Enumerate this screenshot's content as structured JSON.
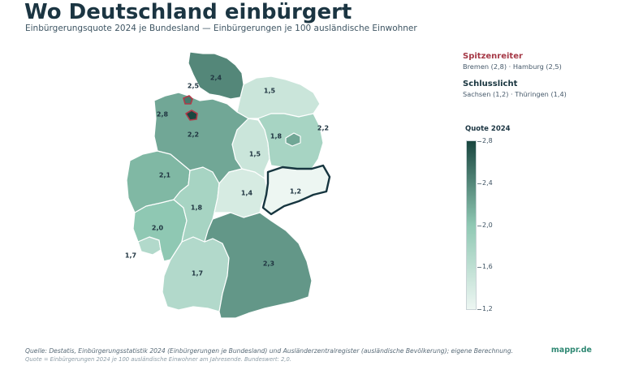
{
  "title": "Wo Deutschland einbürgert",
  "subtitle": "Einbürgerungsquote 2024 je Bundesland — Einbürgerungen je 100 ausländische Einwohner",
  "map": {
    "regions": [
      {
        "key": "sh",
        "name": "Schleswig-Holstein",
        "value": 2.4,
        "label": "2,4"
      },
      {
        "key": "mv",
        "name": "Mecklenburg-Vorpommern",
        "value": 1.5,
        "label": "1,5"
      },
      {
        "key": "hh",
        "name": "Hamburg",
        "value": 2.5,
        "label": "2,5"
      },
      {
        "key": "hb",
        "name": "Bremen",
        "value": 2.8,
        "label": "2,8"
      },
      {
        "key": "ni",
        "name": "Niedersachsen",
        "value": 2.2,
        "label": "2,2"
      },
      {
        "key": "st",
        "name": "Sachsen-Anhalt",
        "value": 1.5,
        "label": "1,5"
      },
      {
        "key": "bb",
        "name": "Brandenburg",
        "value": 1.8,
        "label": "1,8"
      },
      {
        "key": "be",
        "name": "Berlin",
        "value": 2.2,
        "label": "2,2"
      },
      {
        "key": "nw",
        "name": "Nordrhein-Westfalen",
        "value": 2.1,
        "label": "2,1"
      },
      {
        "key": "he",
        "name": "Hessen",
        "value": 1.8,
        "label": "1,8"
      },
      {
        "key": "th",
        "name": "Thüringen",
        "value": 1.4,
        "label": "1,4"
      },
      {
        "key": "sn",
        "name": "Sachsen",
        "value": 1.2,
        "label": "1,2"
      },
      {
        "key": "rp",
        "name": "Rheinland-Pfalz",
        "value": 2.0,
        "label": "2,0"
      },
      {
        "key": "sl",
        "name": "Saarland",
        "value": 1.7,
        "label": "1,7"
      },
      {
        "key": "bw",
        "name": "Baden-Württemberg",
        "value": 1.7,
        "label": "1,7"
      },
      {
        "key": "by",
        "name": "Bayern",
        "value": 2.3,
        "label": "2,3"
      }
    ]
  },
  "annotations": {
    "top": {
      "title": "Spitzenreiter",
      "text": "Bremen (2,8) · Hamburg (2,5)"
    },
    "bottom": {
      "title": "Schlusslicht",
      "text": "Sachsen (1,2) · Thüringen (1,4)"
    }
  },
  "legend": {
    "title": "Quote 2024",
    "min": 1.2,
    "max": 2.8,
    "ticks": [
      {
        "value": 2.8,
        "label": "2,8"
      },
      {
        "value": 2.4,
        "label": "2,4"
      },
      {
        "value": 2.0,
        "label": "2,0"
      },
      {
        "value": 1.6,
        "label": "1,6"
      },
      {
        "value": 1.2,
        "label": "1,2"
      }
    ]
  },
  "colors": {
    "scale_low": "#edf6f2",
    "scale_mid": "#8fc8b3",
    "scale_high": "#19463f",
    "top_accent": "#b03a48",
    "bottom_accent": "#16353f",
    "brand": "#2f8873"
  },
  "footer": {
    "source": "Quelle: Destatis, Einbürgerungsstatistik 2024 (Einbürgerungen je Bundesland) und Ausländerzentralregister (ausländische Bevölkerung); eigene Berechnung.",
    "note": "Quote = Einbürgerungen 2024 je 100 ausländische Einwohner am Jahresende. Bundeswert: 2,0.",
    "brand": "mappr.de"
  }
}
